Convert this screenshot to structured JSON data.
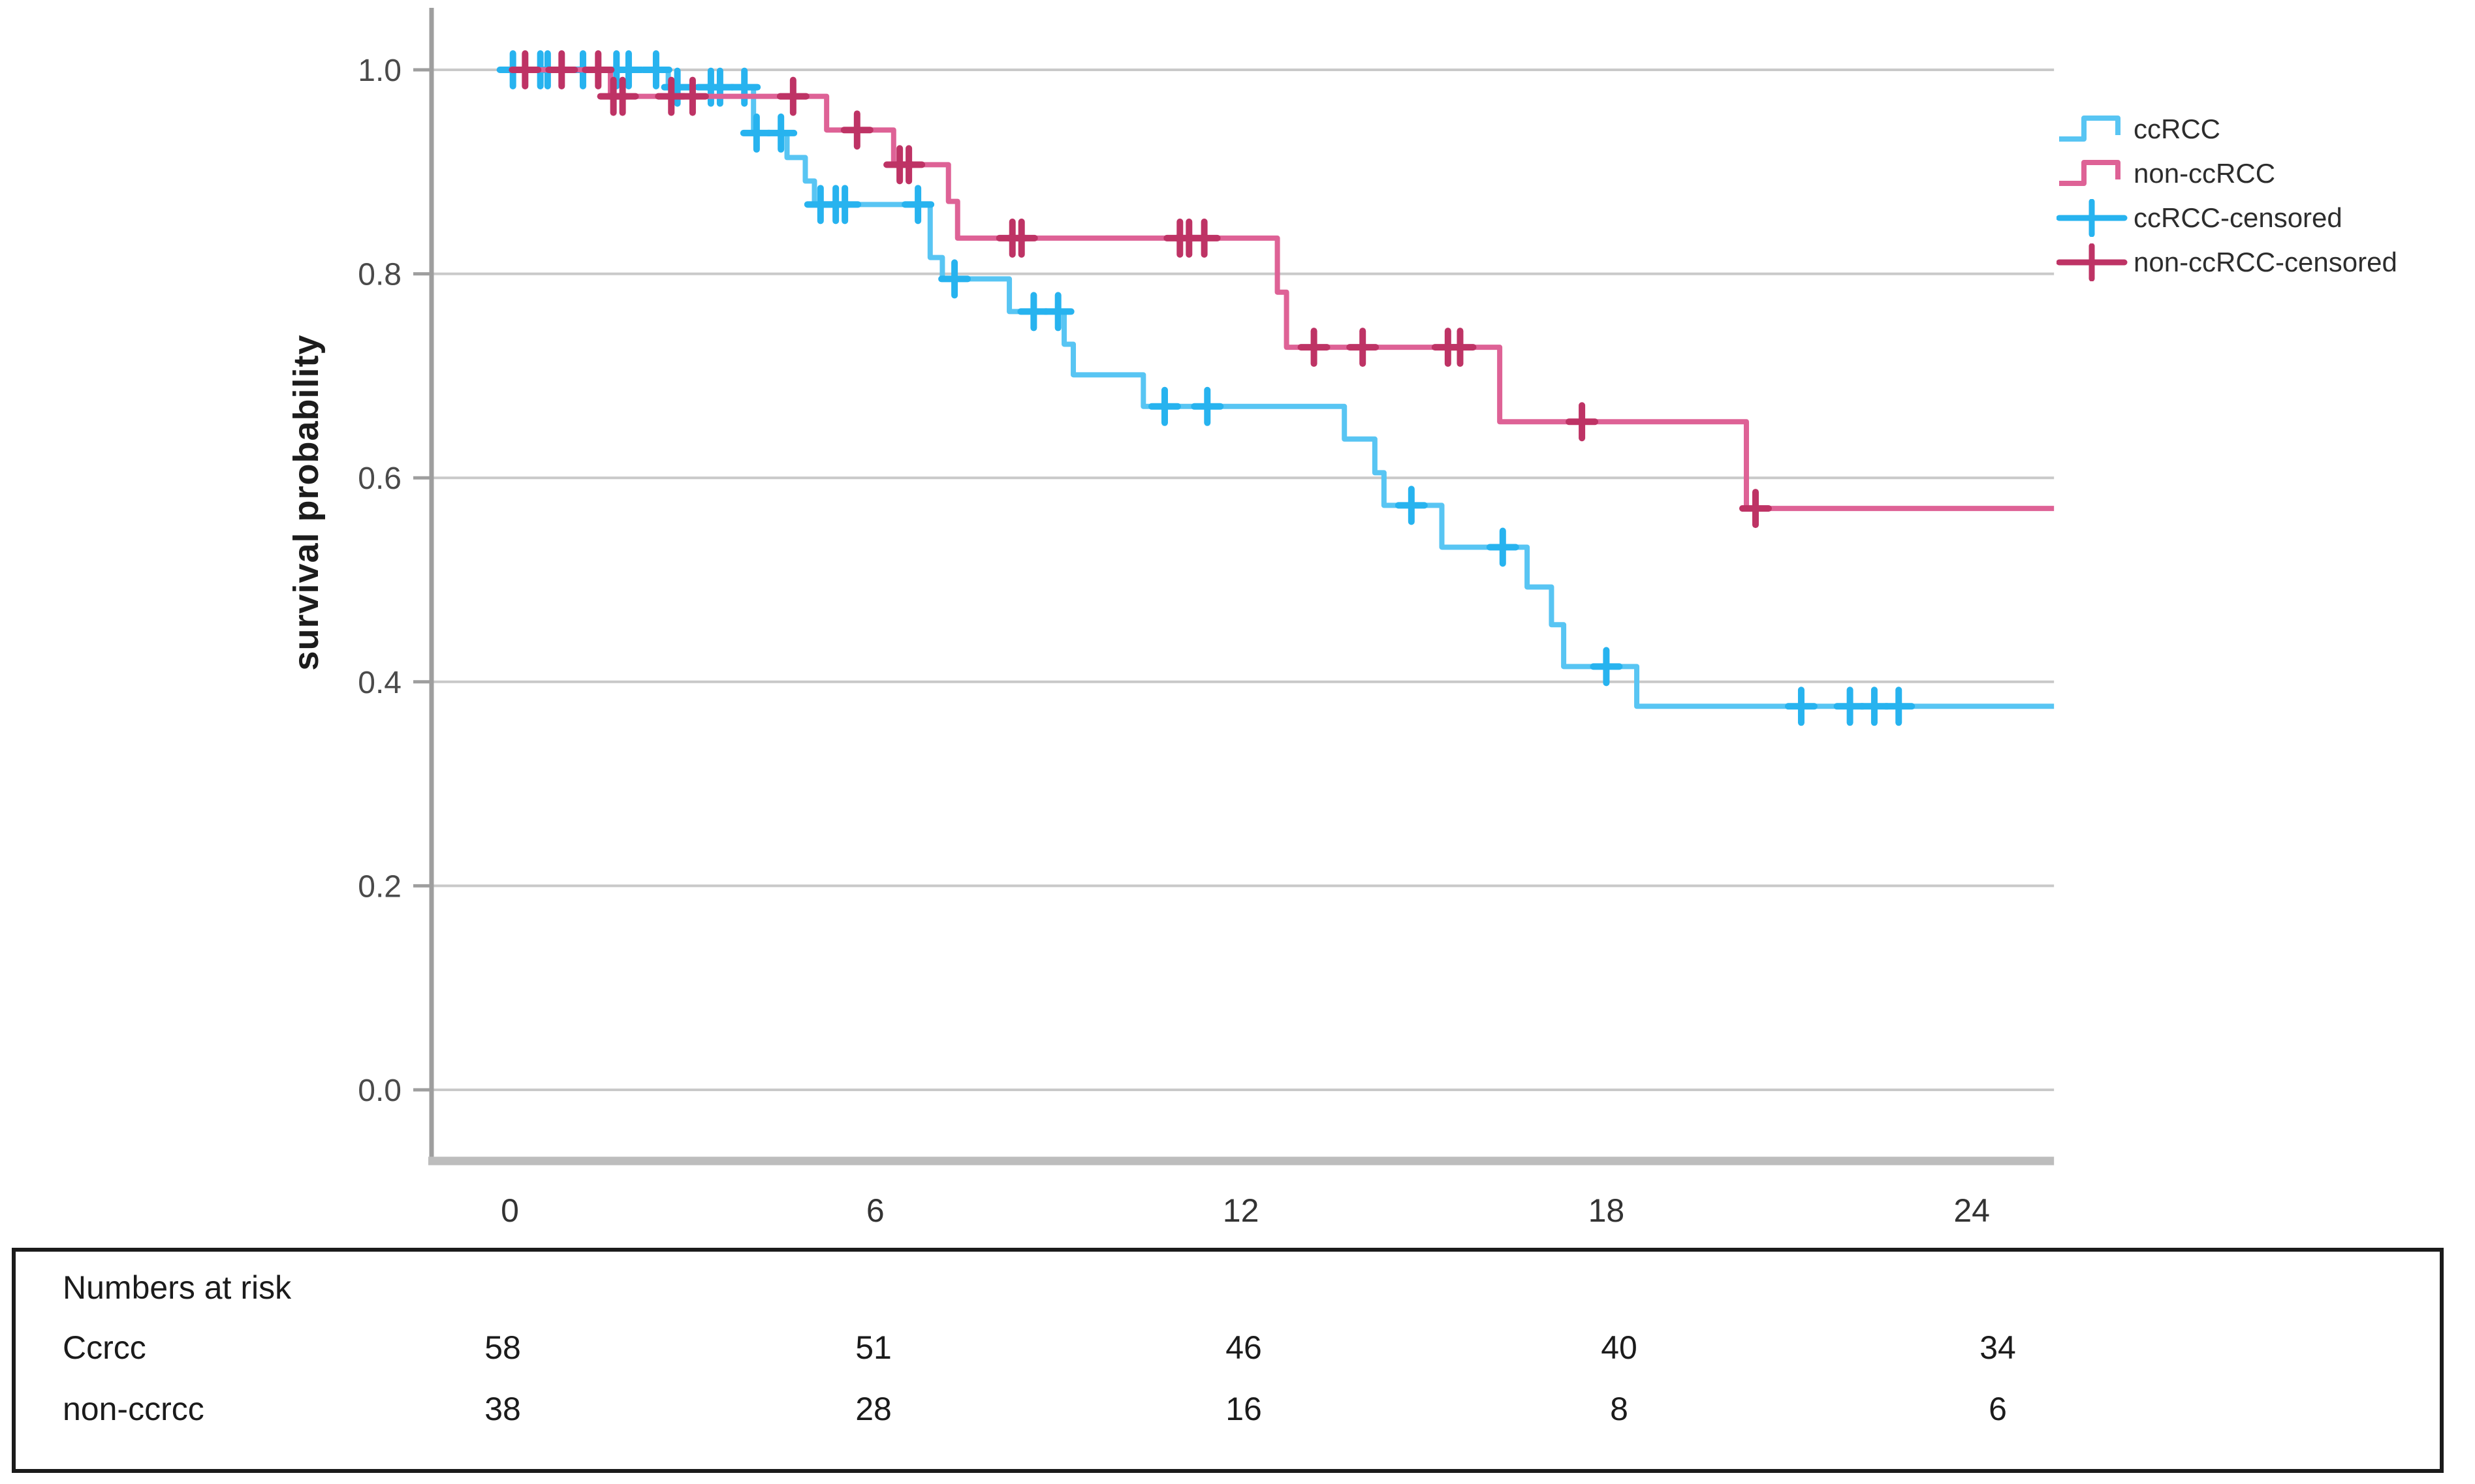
{
  "page": {
    "background": "#ffffff"
  },
  "chart_data": {
    "type": "line",
    "subtype": "kaplan_meier_step_curve",
    "title": "",
    "xlabel": "",
    "ylabel": "survival probability",
    "x_ticks": [
      0,
      6,
      12,
      18,
      24
    ],
    "y_ticks": [
      0.0,
      0.2,
      0.4,
      0.6,
      0.8,
      1.0
    ],
    "xlim": [
      0,
      25.35
    ],
    "ylim": [
      0.0,
      1.0
    ],
    "grid": "horizontal",
    "legend_position": "right",
    "axis_color": "#9e9e9e",
    "grid_color": "#c9c9c9",
    "series": [
      {
        "name": "ccRCC",
        "line_color": "#58C5F3",
        "censor_color": "#27B3EF",
        "steps": [
          [
            0,
            1.0
          ],
          [
            2.6,
            0.983
          ],
          [
            4.0,
            0.938
          ],
          [
            4.55,
            0.914
          ],
          [
            4.85,
            0.891
          ],
          [
            5.0,
            0.868
          ],
          [
            6.9,
            0.816
          ],
          [
            7.1,
            0.795
          ],
          [
            8.2,
            0.763
          ],
          [
            9.1,
            0.731
          ],
          [
            9.25,
            0.701
          ],
          [
            10.4,
            0.67
          ],
          [
            13.7,
            0.638
          ],
          [
            14.2,
            0.605
          ],
          [
            14.35,
            0.573
          ],
          [
            15.3,
            0.532
          ],
          [
            16.7,
            0.493
          ],
          [
            17.1,
            0.456
          ],
          [
            17.3,
            0.415
          ],
          [
            18.5,
            0.376
          ]
        ],
        "censors": [
          [
            0.05,
            1.0
          ],
          [
            0.5,
            1.0
          ],
          [
            0.62,
            1.0
          ],
          [
            1.2,
            1.0
          ],
          [
            1.75,
            1.0
          ],
          [
            1.95,
            1.0
          ],
          [
            2.4,
            1.0
          ],
          [
            2.75,
            0.983
          ],
          [
            3.3,
            0.983
          ],
          [
            3.45,
            0.983
          ],
          [
            3.85,
            0.983
          ],
          [
            4.05,
            0.938
          ],
          [
            4.45,
            0.938
          ],
          [
            5.1,
            0.868
          ],
          [
            5.35,
            0.868
          ],
          [
            5.5,
            0.868
          ],
          [
            6.7,
            0.868
          ],
          [
            7.3,
            0.795
          ],
          [
            8.6,
            0.763
          ],
          [
            9.0,
            0.763
          ],
          [
            10.75,
            0.67
          ],
          [
            11.45,
            0.67
          ],
          [
            14.8,
            0.573
          ],
          [
            16.3,
            0.532
          ],
          [
            18.0,
            0.415
          ],
          [
            21.2,
            0.376
          ],
          [
            22.0,
            0.376
          ],
          [
            22.4,
            0.376
          ],
          [
            22.8,
            0.376
          ]
        ]
      },
      {
        "name": "non-ccRCC",
        "line_color": "#DE6296",
        "censor_color": "#BE3365",
        "steps": [
          [
            0,
            1.0
          ],
          [
            1.65,
            0.974
          ],
          [
            5.2,
            0.941
          ],
          [
            6.3,
            0.907
          ],
          [
            7.2,
            0.871
          ],
          [
            7.35,
            0.835
          ],
          [
            12.6,
            0.782
          ],
          [
            12.75,
            0.728
          ],
          [
            16.25,
            0.655
          ],
          [
            20.3,
            0.57
          ]
        ],
        "censors": [
          [
            0.25,
            1.0
          ],
          [
            0.85,
            1.0
          ],
          [
            1.45,
            1.0
          ],
          [
            1.7,
            0.974
          ],
          [
            1.85,
            0.974
          ],
          [
            2.65,
            0.974
          ],
          [
            3.0,
            0.974
          ],
          [
            4.65,
            0.974
          ],
          [
            5.7,
            0.941
          ],
          [
            6.4,
            0.907
          ],
          [
            6.55,
            0.907
          ],
          [
            8.25,
            0.835
          ],
          [
            8.4,
            0.835
          ],
          [
            11.0,
            0.835
          ],
          [
            11.15,
            0.835
          ],
          [
            11.4,
            0.835
          ],
          [
            13.2,
            0.728
          ],
          [
            14.0,
            0.728
          ],
          [
            15.4,
            0.728
          ],
          [
            15.6,
            0.728
          ],
          [
            17.6,
            0.655
          ],
          [
            20.45,
            0.57
          ]
        ]
      }
    ]
  },
  "legend": {
    "items": [
      {
        "label": "ccRCC",
        "glyph": "step-line",
        "color": "#58C5F3"
      },
      {
        "label": "non-ccRCC",
        "glyph": "step-line",
        "color": "#DE6296"
      },
      {
        "label": "ccRCC-censored",
        "glyph": "plus-line",
        "color": "#27B3EF"
      },
      {
        "label": "non-ccRCC-censored",
        "glyph": "plus-line",
        "color": "#BE3365"
      }
    ]
  },
  "risk_table": {
    "title": "Numbers at risk",
    "rows": [
      {
        "label": "Ccrcc",
        "values": [
          "58",
          "51",
          "46",
          "40",
          "34"
        ]
      },
      {
        "label": "non-ccrcc",
        "values": [
          "38",
          "28",
          "16",
          "8",
          "6"
        ]
      }
    ]
  }
}
